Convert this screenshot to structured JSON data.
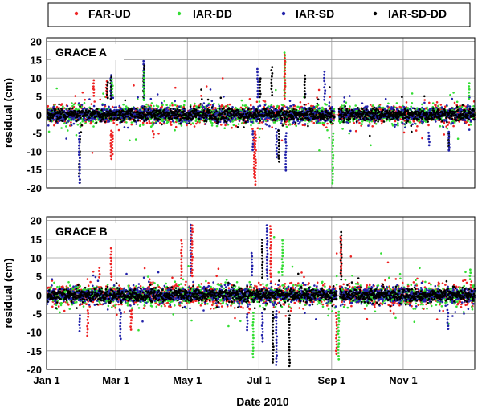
{
  "chart_data": {
    "type": "scatter",
    "xlabel": "Date 2010",
    "ylabel": "residual (cm)",
    "x_domain_days": [
      0,
      365
    ],
    "x_ticks": [
      {
        "label": "Jan 1",
        "day": 0
      },
      {
        "label": "Mar 1",
        "day": 59
      },
      {
        "label": "May 1",
        "day": 120
      },
      {
        "label": "Jul 1",
        "day": 181
      },
      {
        "label": "Sep 1",
        "day": 243
      },
      {
        "label": "Nov 1",
        "day": 304
      }
    ],
    "y_ticks": [
      -20,
      -15,
      -10,
      -5,
      0,
      5,
      10,
      15,
      20
    ],
    "ylim": [
      -20,
      21
    ],
    "grid": true,
    "legend": [
      {
        "name": "FAR-UD",
        "color": "#ee2222"
      },
      {
        "name": "IAR-DD",
        "color": "#33dd33"
      },
      {
        "name": "IAR-SD",
        "color": "#2222aa"
      },
      {
        "name": "IAR-SD-DD",
        "color": "#000000"
      }
    ],
    "panels": [
      {
        "title": "GRACE A",
        "core_spread_cm": {
          "FAR-UD": 2.3,
          "IAR-DD": 2.3,
          "IAR-SD": 1.9,
          "IAR-SD-DD": 1.5
        },
        "outliers": [
          {
            "series": "IAR-SD-DD",
            "day": 28,
            "y": -18.8
          },
          {
            "series": "IAR-SD",
            "day": 28,
            "y": -19.3
          },
          {
            "series": "FAR-UD",
            "day": 40,
            "y": 9.5
          },
          {
            "series": "FAR-UD",
            "day": 51,
            "y": 9.5
          },
          {
            "series": "IAR-SD-DD",
            "day": 52,
            "y": 9.0
          },
          {
            "series": "FAR-UD",
            "day": 55,
            "y": -12.8
          },
          {
            "series": "FAR-UD",
            "day": 56,
            "y": -11.0
          },
          {
            "series": "IAR-SD",
            "day": 55,
            "y": 11.0
          },
          {
            "series": "IAR-SD-DD",
            "day": 55,
            "y": 10.5
          },
          {
            "series": "IAR-DD",
            "day": 56,
            "y": 9.8
          },
          {
            "series": "IAR-SD",
            "day": 83,
            "y": 14.6
          },
          {
            "series": "IAR-SD-DD",
            "day": 83,
            "y": 13.8
          },
          {
            "series": "IAR-DD",
            "day": 83,
            "y": 12.5
          },
          {
            "series": "FAR-UD",
            "day": 91,
            "y": -7.0
          },
          {
            "series": "FAR-UD",
            "day": 132,
            "y": 5.5
          },
          {
            "series": "IAR-SD",
            "day": 176,
            "y": -10.0
          },
          {
            "series": "FAR-UD",
            "day": 177,
            "y": -17.2
          },
          {
            "series": "FAR-UD",
            "day": 178,
            "y": -19.6
          },
          {
            "series": "IAR-SD",
            "day": 180,
            "y": 12.6
          },
          {
            "series": "IAR-SD-DD",
            "day": 182,
            "y": 10.2
          },
          {
            "series": "IAR-SD-DD",
            "day": 192,
            "y": 13.8
          },
          {
            "series": "IAR-SD",
            "day": 196,
            "y": -12.0
          },
          {
            "series": "IAR-SD-DD",
            "day": 198,
            "y": -13.0
          },
          {
            "series": "IAR-DD",
            "day": 203,
            "y": 17.2
          },
          {
            "series": "FAR-UD",
            "day": 203,
            "y": 16.4
          },
          {
            "series": "IAR-SD",
            "day": 204,
            "y": -15.7
          },
          {
            "series": "IAR-SD-DD",
            "day": 220,
            "y": 11.4
          },
          {
            "series": "IAR-SD",
            "day": 237,
            "y": 12.0
          },
          {
            "series": "IAR-DD",
            "day": 244,
            "y": -18.8
          },
          {
            "series": "IAR-SD",
            "day": 326,
            "y": -8.5
          },
          {
            "series": "IAR-SD-DD",
            "day": 343,
            "y": -9.5
          },
          {
            "series": "IAR-SD",
            "day": 343,
            "y": -10.5
          },
          {
            "series": "IAR-DD",
            "day": 360,
            "y": 9.0
          }
        ]
      },
      {
        "title": "GRACE B",
        "core_spread_cm": {
          "FAR-UD": 2.6,
          "IAR-DD": 2.4,
          "IAR-SD": 1.9,
          "IAR-SD-DD": 1.5
        },
        "outliers": [
          {
            "series": "IAR-SD",
            "day": 28,
            "y": -10.5
          },
          {
            "series": "FAR-UD",
            "day": 35,
            "y": -11.0
          },
          {
            "series": "FAR-UD",
            "day": 45,
            "y": 8.0
          },
          {
            "series": "FAR-UD",
            "day": 55,
            "y": 13.0
          },
          {
            "series": "IAR-SD",
            "day": 63,
            "y": -12.0
          },
          {
            "series": "FAR-UD",
            "day": 72,
            "y": -10.0
          },
          {
            "series": "FAR-UD",
            "day": 115,
            "y": 14.8
          },
          {
            "series": "IAR-SD",
            "day": 123,
            "y": 19.2
          },
          {
            "series": "FAR-UD",
            "day": 124,
            "y": 18.8
          },
          {
            "series": "IAR-SD",
            "day": 171,
            "y": -10.0
          },
          {
            "series": "IAR-SD",
            "day": 175,
            "y": 12.0
          },
          {
            "series": "IAR-DD",
            "day": 176,
            "y": -17.0
          },
          {
            "series": "IAR-SD-DD",
            "day": 184,
            "y": 15.6
          },
          {
            "series": "IAR-SD",
            "day": 184,
            "y": -13.0
          },
          {
            "series": "IAR-SD",
            "day": 188,
            "y": 18.8
          },
          {
            "series": "FAR-UD",
            "day": 191,
            "y": 19.2
          },
          {
            "series": "IAR-SD-DD",
            "day": 193,
            "y": -18.6
          },
          {
            "series": "IAR-SD",
            "day": 196,
            "y": -19.2
          },
          {
            "series": "IAR-DD",
            "day": 201,
            "y": 15.0
          },
          {
            "series": "IAR-SD-DD",
            "day": 207,
            "y": -19.5
          },
          {
            "series": "FAR-UD",
            "day": 247,
            "y": -16.0
          },
          {
            "series": "IAR-DD",
            "day": 249,
            "y": -18.0
          },
          {
            "series": "IAR-SD-DD",
            "day": 251,
            "y": 17.0
          },
          {
            "series": "FAR-UD",
            "day": 251,
            "y": 16.4
          },
          {
            "series": "IAR-SD",
            "day": 342,
            "y": -9.5
          },
          {
            "series": "IAR-DD",
            "day": 361,
            "y": 7.5
          }
        ]
      }
    ]
  }
}
